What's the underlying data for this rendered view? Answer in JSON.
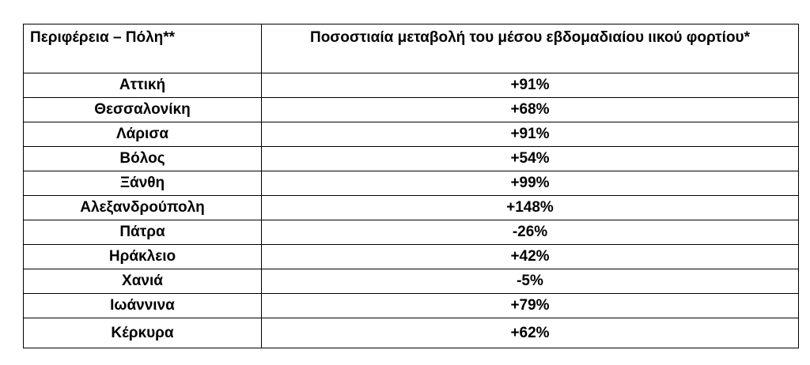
{
  "table": {
    "headers": {
      "region": "Περιφέρεια – Πόλη**",
      "change": "Ποσοστιαία μεταβολή του μέσου εβδομαδιαίου ιικού φορτίου*"
    },
    "rows": [
      {
        "city": "Αττική",
        "change": "+91%"
      },
      {
        "city": "Θεσσαλονίκη",
        "change": "+68%"
      },
      {
        "city": "Λάρισα",
        "change": "+91%"
      },
      {
        "city": "Βόλος",
        "change": "+54%"
      },
      {
        "city": "Ξάνθη",
        "change": "+99%"
      },
      {
        "city": "Αλεξανδρούπολη",
        "change": "+148%"
      },
      {
        "city": "Πάτρα",
        "change": "-26%"
      },
      {
        "city": "Ηράκλειο",
        "change": "+42%"
      },
      {
        "city": "Χανιά",
        "change": "-5%"
      },
      {
        "city": "Ιωάννινα",
        "change": "+79%"
      },
      {
        "city": "Κέρκυρα",
        "change": "+62%"
      }
    ]
  }
}
